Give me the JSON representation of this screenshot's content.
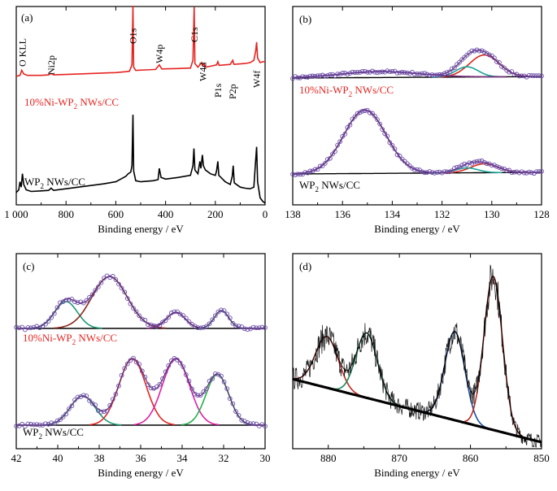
{
  "chart_data": [
    {
      "panel": "(a)",
      "type": "line",
      "xlabel": "Binding energy  / eV",
      "xlim": [
        1000,
        0
      ],
      "xticks": [
        "1 000",
        "800",
        "600",
        "400",
        "200",
        "0"
      ],
      "xtick_values": [
        1000,
        800,
        600,
        400,
        200,
        0
      ],
      "annotations": [
        {
          "text": "O KLL",
          "x": 975
        },
        {
          "text": "Ni2p",
          "x": 860
        },
        {
          "text": "O1s",
          "x": 531
        },
        {
          "text": "W4p",
          "x": 425
        },
        {
          "text": "C1s",
          "x": 285
        },
        {
          "text": "W4d",
          "x": 250
        },
        {
          "text": "P1s",
          "x": 190
        },
        {
          "text": "P2p",
          "x": 130
        },
        {
          "text": "W4f",
          "x": 35
        }
      ],
      "series": [
        {
          "name": "10%Ni-WP2 NWs/CC",
          "color": "#e52420",
          "points": [
            [
              1000,
              0.2
            ],
            [
              985,
              0.22
            ],
            [
              978,
              0.33
            ],
            [
              970,
              0.25
            ],
            [
              955,
              0.22
            ],
            [
              900,
              0.22
            ],
            [
              870,
              0.23
            ],
            [
              860,
              0.26
            ],
            [
              850,
              0.23
            ],
            [
              800,
              0.24
            ],
            [
              700,
              0.26
            ],
            [
              600,
              0.28
            ],
            [
              560,
              0.3
            ],
            [
              545,
              0.31
            ],
            [
              535,
              0.45
            ],
            [
              531,
              1.75
            ],
            [
              528,
              0.4
            ],
            [
              520,
              0.33
            ],
            [
              480,
              0.34
            ],
            [
              440,
              0.35
            ],
            [
              425,
              0.45
            ],
            [
              415,
              0.36
            ],
            [
              350,
              0.37
            ],
            [
              300,
              0.38
            ],
            [
              290,
              0.55
            ],
            [
              285,
              1.72
            ],
            [
              282,
              0.48
            ],
            [
              270,
              0.4
            ],
            [
              255,
              0.5
            ],
            [
              250,
              0.44
            ],
            [
              245,
              0.48
            ],
            [
              240,
              0.4
            ],
            [
              220,
              0.42
            ],
            [
              195,
              0.45
            ],
            [
              190,
              0.52
            ],
            [
              185,
              0.44
            ],
            [
              140,
              0.46
            ],
            [
              130,
              0.55
            ],
            [
              125,
              0.46
            ],
            [
              80,
              0.48
            ],
            [
              60,
              0.5
            ],
            [
              45,
              0.55
            ],
            [
              38,
              0.75
            ],
            [
              34,
              0.95
            ],
            [
              30,
              0.6
            ],
            [
              20,
              0.5
            ],
            [
              10,
              0.52
            ],
            [
              0,
              0.52
            ]
          ]
        },
        {
          "name": "WP2 NWs/CC",
          "color": "#000000",
          "points": [
            [
              1000,
              0.2
            ],
            [
              990,
              0.25
            ],
            [
              985,
              0.4
            ],
            [
              980,
              0.3
            ],
            [
              975,
              0.55
            ],
            [
              970,
              0.35
            ],
            [
              960,
              0.25
            ],
            [
              940,
              0.22
            ],
            [
              900,
              0.23
            ],
            [
              870,
              0.24
            ],
            [
              860,
              0.28
            ],
            [
              850,
              0.24
            ],
            [
              800,
              0.27
            ],
            [
              750,
              0.3
            ],
            [
              700,
              0.33
            ],
            [
              650,
              0.36
            ],
            [
              600,
              0.4
            ],
            [
              580,
              0.45
            ],
            [
              560,
              0.5
            ],
            [
              550,
              0.55
            ],
            [
              540,
              0.58
            ],
            [
              535,
              0.7
            ],
            [
              531,
              1.65
            ],
            [
              528,
              0.6
            ],
            [
              520,
              0.42
            ],
            [
              500,
              0.4
            ],
            [
              450,
              0.42
            ],
            [
              430,
              0.44
            ],
            [
              425,
              0.65
            ],
            [
              418,
              0.48
            ],
            [
              400,
              0.45
            ],
            [
              350,
              0.48
            ],
            [
              300,
              0.52
            ],
            [
              290,
              0.7
            ],
            [
              286,
              1.02
            ],
            [
              282,
              0.62
            ],
            [
              270,
              0.55
            ],
            [
              262,
              0.78
            ],
            [
              258,
              0.65
            ],
            [
              252,
              0.9
            ],
            [
              248,
              0.7
            ],
            [
              240,
              0.62
            ],
            [
              220,
              0.55
            ],
            [
              200,
              0.52
            ],
            [
              195,
              0.6
            ],
            [
              190,
              0.78
            ],
            [
              186,
              0.52
            ],
            [
              160,
              0.4
            ],
            [
              140,
              0.35
            ],
            [
              132,
              0.5
            ],
            [
              128,
              0.7
            ],
            [
              124,
              0.38
            ],
            [
              100,
              0.3
            ],
            [
              80,
              0.28
            ],
            [
              60,
              0.27
            ],
            [
              45,
              0.3
            ],
            [
              38,
              0.8
            ],
            [
              34,
              1.05
            ],
            [
              30,
              0.4
            ],
            [
              20,
              0.1
            ],
            [
              10,
              0.04
            ],
            [
              0,
              0.0
            ]
          ]
        }
      ]
    },
    {
      "panel": "(b)",
      "type": "line",
      "xlabel": "Binding energy  / eV",
      "xlim": [
        138,
        128
      ],
      "xticks": [
        "138",
        "136",
        "134",
        "132",
        "130",
        "128"
      ],
      "xtick_values": [
        138,
        136,
        134,
        132,
        130,
        128
      ],
      "series": [
        {
          "name": "10%Ni-WP2 NWs/CC",
          "color": "#e52420",
          "background": 0.05,
          "peaks": [
            {
              "center": 130.3,
              "height": 0.3,
              "width": 0.6,
              "color": "#d7281e"
            },
            {
              "center": 131.0,
              "height": 0.14,
              "width": 0.45,
              "color": "#1ba59a"
            },
            {
              "center": 134.5,
              "height": 0.08,
              "width": 1.6,
              "color": "#7a2a7a"
            }
          ]
        },
        {
          "name": "WP2 NWs/CC",
          "color": "#000000",
          "background": 0.02,
          "peaks": [
            {
              "center": 135.1,
              "height": 0.78,
              "width": 0.85,
              "color": "#7a2a7a"
            },
            {
              "center": 130.3,
              "height": 0.11,
              "width": 0.55,
              "color": "#d7281e"
            },
            {
              "center": 131.0,
              "height": 0.06,
              "width": 0.45,
              "color": "#1ba59a"
            }
          ]
        }
      ]
    },
    {
      "panel": "(c)",
      "type": "line",
      "xlabel": "Binding energy  / eV",
      "xlim": [
        42,
        30
      ],
      "xticks": [
        "42",
        "40",
        "38",
        "36",
        "34",
        "32",
        "30"
      ],
      "xtick_values": [
        42,
        40,
        38,
        36,
        34,
        32,
        30
      ],
      "series": [
        {
          "name": "10%Ni-WP2 NWs/CC",
          "color": "#e52420",
          "background": 0.03,
          "peaks": [
            {
              "center": 39.6,
              "height": 0.3,
              "width": 0.55,
              "color": "#1b9a74"
            },
            {
              "center": 37.5,
              "height": 0.58,
              "width": 0.85,
              "color": "#8b2a1e"
            },
            {
              "center": 34.3,
              "height": 0.18,
              "width": 0.45,
              "color": "#7a2a7a"
            },
            {
              "center": 32.1,
              "height": 0.2,
              "width": 0.35,
              "color": "#1b9a74"
            }
          ]
        },
        {
          "name": "WP2 NWs/CC",
          "color": "#000000",
          "background": 0.02,
          "peaks": [
            {
              "center": 38.8,
              "height": 0.3,
              "width": 0.6,
              "color": "#1b9a74"
            },
            {
              "center": 36.4,
              "height": 0.68,
              "width": 0.65,
              "color": "#e52420"
            },
            {
              "center": 34.3,
              "height": 0.68,
              "width": 0.65,
              "color": "#e020a8"
            },
            {
              "center": 32.3,
              "height": 0.52,
              "width": 0.55,
              "color": "#22b04a"
            }
          ]
        }
      ]
    },
    {
      "panel": "(d)",
      "type": "line",
      "xlabel": "Binding energy  / eV",
      "xlim": [
        885,
        850
      ],
      "xticks": [
        "880",
        "870",
        "860",
        "850"
      ],
      "xtick_values": [
        880,
        870,
        860,
        850
      ],
      "series": [
        {
          "name": "",
          "color": "#000000",
          "peaks": [
            {
              "center": 880.2,
              "height": 0.3,
              "width": 1.6,
              "color": "#c0281e"
            },
            {
              "center": 874.6,
              "height": 0.38,
              "width": 1.5,
              "color": "#1b8a5a"
            },
            {
              "center": 862.2,
              "height": 0.52,
              "width": 1.4,
              "color": "#1b4ca0"
            },
            {
              "center": 856.8,
              "height": 0.9,
              "width": 1.3,
              "color": "#c0281e"
            }
          ]
        }
      ]
    }
  ],
  "labels": {
    "panel_a": "(a)",
    "panel_b": "(b)",
    "panel_c": "(c)",
    "panel_d": "(d)",
    "series_ni": "10%Ni-WP",
    "series_wp": "WP",
    "sub2": "2",
    "suffix": " NWs/CC",
    "xlabel": "Binding energy  / eV"
  }
}
